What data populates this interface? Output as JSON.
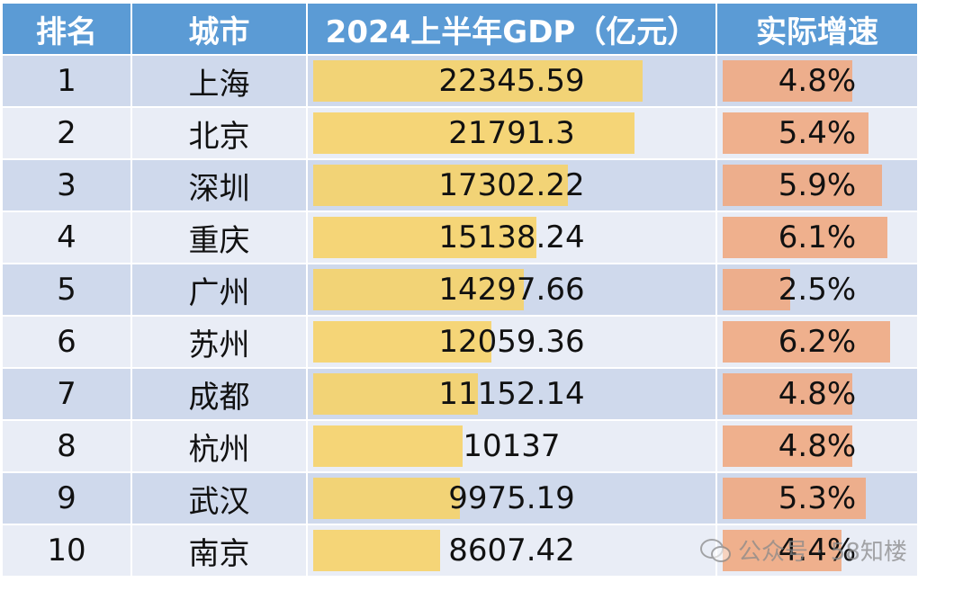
{
  "headers": {
    "rank": "排名",
    "city": "城市",
    "gdp": "2024上半年GDP（亿元）",
    "growth": "实际增速"
  },
  "watermark": "公众号 · 58知楼",
  "colors": {
    "header_bg": "#5b9bd5",
    "row_odd": "#cfd9ec",
    "row_even": "#e9edf6",
    "gdp_bar": "#f5d26b",
    "growth_bar": "#efa882"
  },
  "chart_data": {
    "type": "table",
    "columns": [
      "排名",
      "城市",
      "2024上半年GDP（亿元）",
      "实际增速"
    ],
    "rows": [
      {
        "rank": "1",
        "city": "上海",
        "gdp": "22345.59",
        "growth": "4.8%"
      },
      {
        "rank": "2",
        "city": "北京",
        "gdp": "21791.3",
        "growth": "5.4%"
      },
      {
        "rank": "3",
        "city": "深圳",
        "gdp": "17302.22",
        "growth": "5.9%"
      },
      {
        "rank": "4",
        "city": "重庆",
        "gdp": "15138.24",
        "growth": "6.1%"
      },
      {
        "rank": "5",
        "city": "广州",
        "gdp": "14297.66",
        "growth": "2.5%"
      },
      {
        "rank": "6",
        "city": "苏州",
        "gdp": "12059.36",
        "growth": "6.2%"
      },
      {
        "rank": "7",
        "city": "成都",
        "gdp": "11152.14",
        "growth": "4.8%"
      },
      {
        "rank": "8",
        "city": "杭州",
        "gdp": "10137",
        "growth": "4.8%"
      },
      {
        "rank": "9",
        "city": "武汉",
        "gdp": "9975.19",
        "growth": "5.3%"
      },
      {
        "rank": "10",
        "city": "南京",
        "gdp": "8607.42",
        "growth": "4.4%"
      }
    ]
  }
}
